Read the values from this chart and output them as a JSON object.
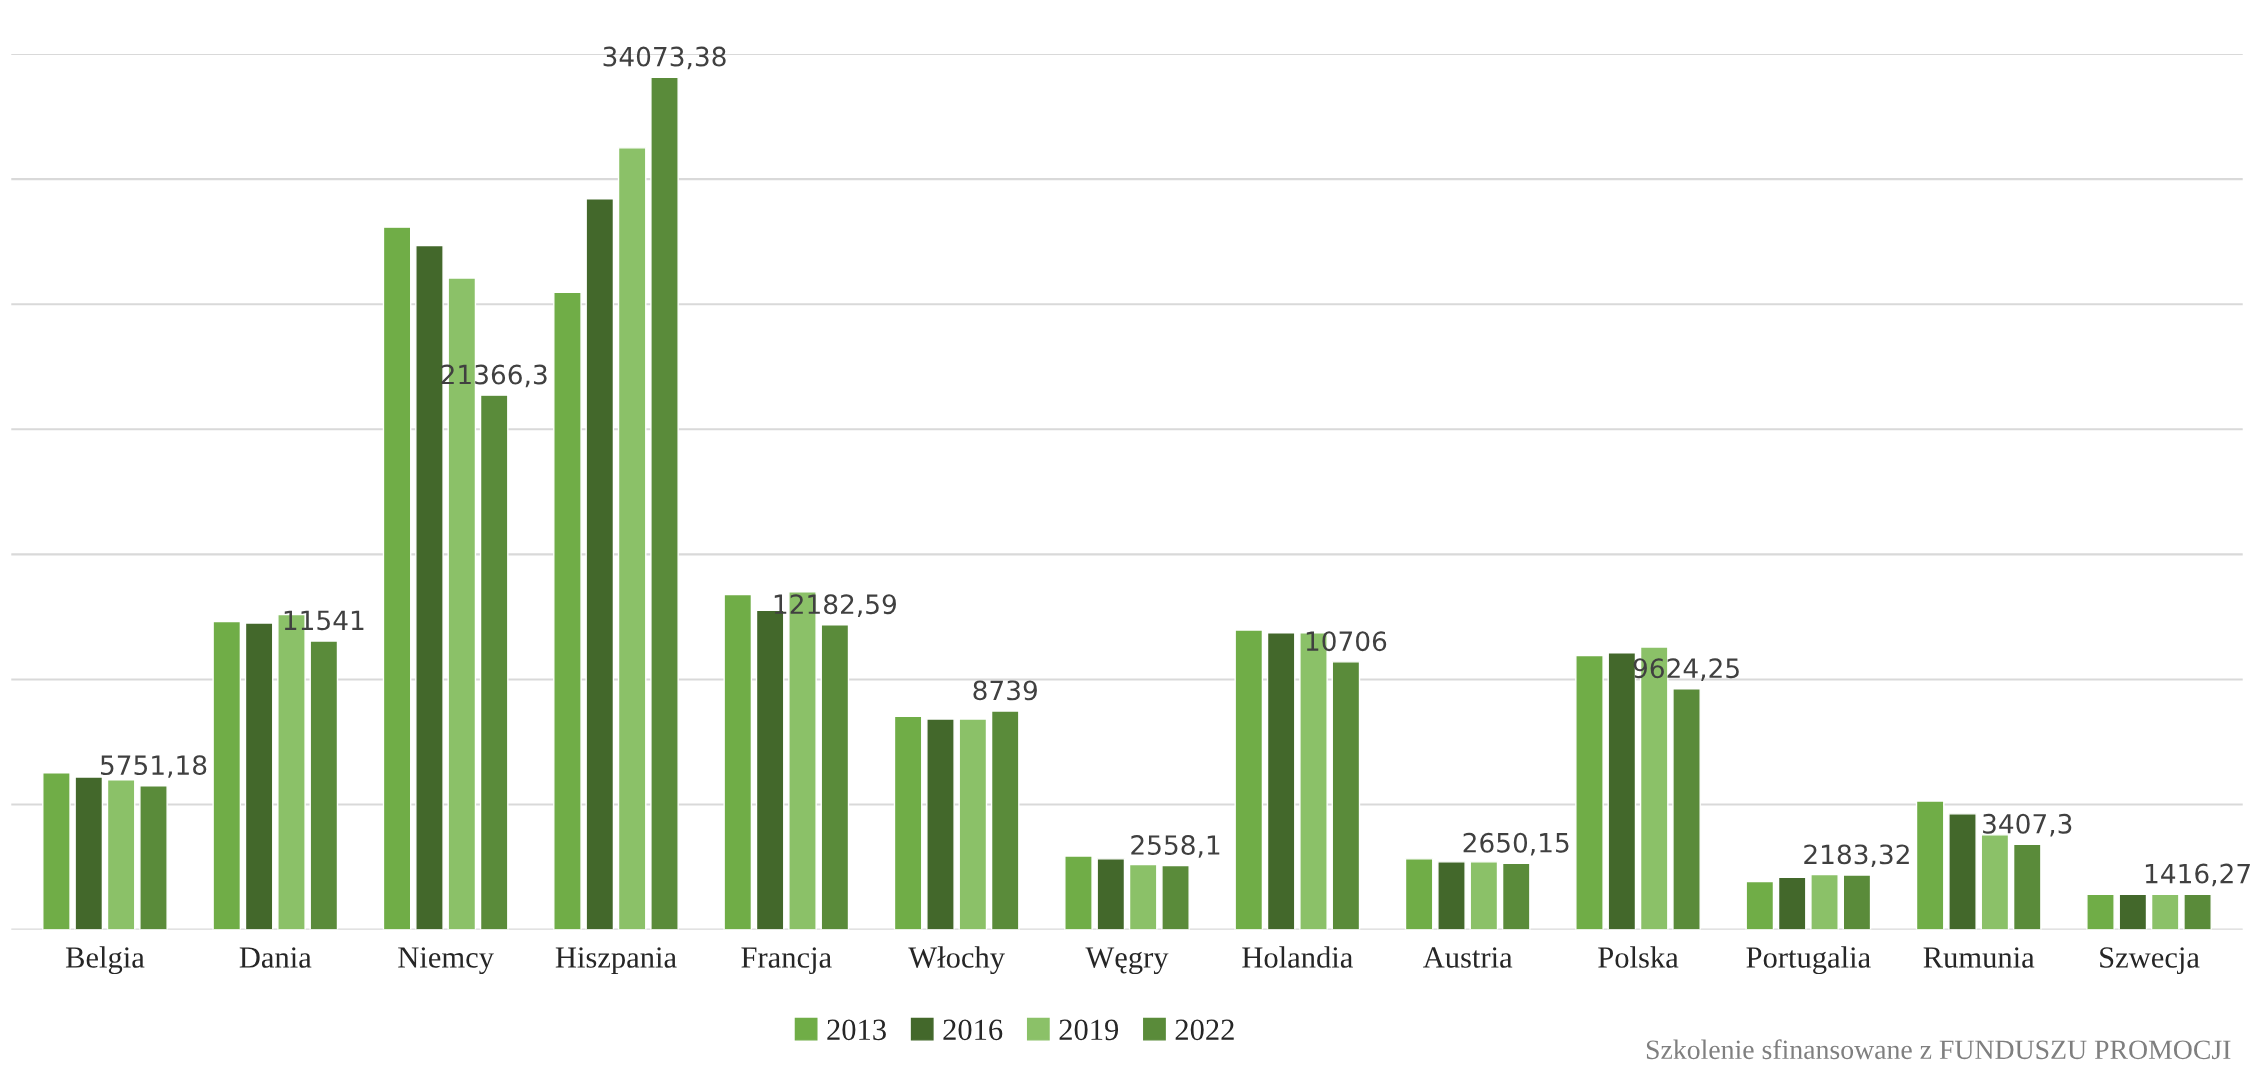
{
  "chart_data": {
    "type": "bar",
    "categories": [
      "Belgia",
      "Dania",
      "Niemcy",
      "Hiszpania",
      "Francja",
      "Włochy",
      "Węgry",
      "Holandia",
      "Austria",
      "Polska",
      "Portugalia",
      "Rumunia",
      "Szwecja"
    ],
    "series": [
      {
        "name": "2013",
        "color": "#70ad47",
        "values": [
          6270,
          12320,
          28080,
          25480,
          13390,
          8530,
          2940,
          11980,
          2830,
          10960,
          1920,
          5140,
          1410
        ]
      },
      {
        "name": "2016",
        "color": "#43682b",
        "values": [
          6100,
          12260,
          27350,
          29210,
          12770,
          8420,
          2830,
          11870,
          2710,
          11070,
          2090,
          4630,
          1410
        ]
      },
      {
        "name": "2019",
        "color": "#8bc168",
        "values": [
          5990,
          12600,
          26050,
          31250,
          13500,
          8420,
          2600,
          11870,
          2710,
          11300,
          2200,
          3790,
          1410
        ]
      },
      {
        "name": "2022",
        "color": "#5a8b3a",
        "values": [
          5751.18,
          11541,
          21366.3,
          34073.38,
          12182.59,
          8739,
          2558.1,
          10706,
          2650.15,
          9624.25,
          2183.32,
          3407.3,
          1416.27
        ],
        "value_labels": [
          "5751,18",
          "11541",
          "21366,3",
          "34073,38",
          "12182,59",
          "8739",
          "2558,1",
          "10706",
          "2650,15",
          "9624,25",
          "2183,32",
          "3407,3",
          "1416,27"
        ]
      }
    ],
    "ylim": [
      0,
      35000
    ],
    "yticks": [
      {
        "value": 0,
        "label": null
      },
      {
        "value": 5000,
        "label": null
      },
      {
        "value": 10000,
        "label": null
      },
      {
        "value": 15000,
        "label": null
      },
      {
        "value": 20000,
        "label": null
      },
      {
        "value": 25000,
        "label": null
      },
      {
        "value": 30000,
        "label": null
      },
      {
        "value": 35000,
        "label": null
      }
    ],
    "tick_labels": "x",
    "grid": "y",
    "legend": "bottom",
    "annotations": [
      "Szkolenie sfinansowane z FUNDUSZU PROMOCJI"
    ]
  }
}
